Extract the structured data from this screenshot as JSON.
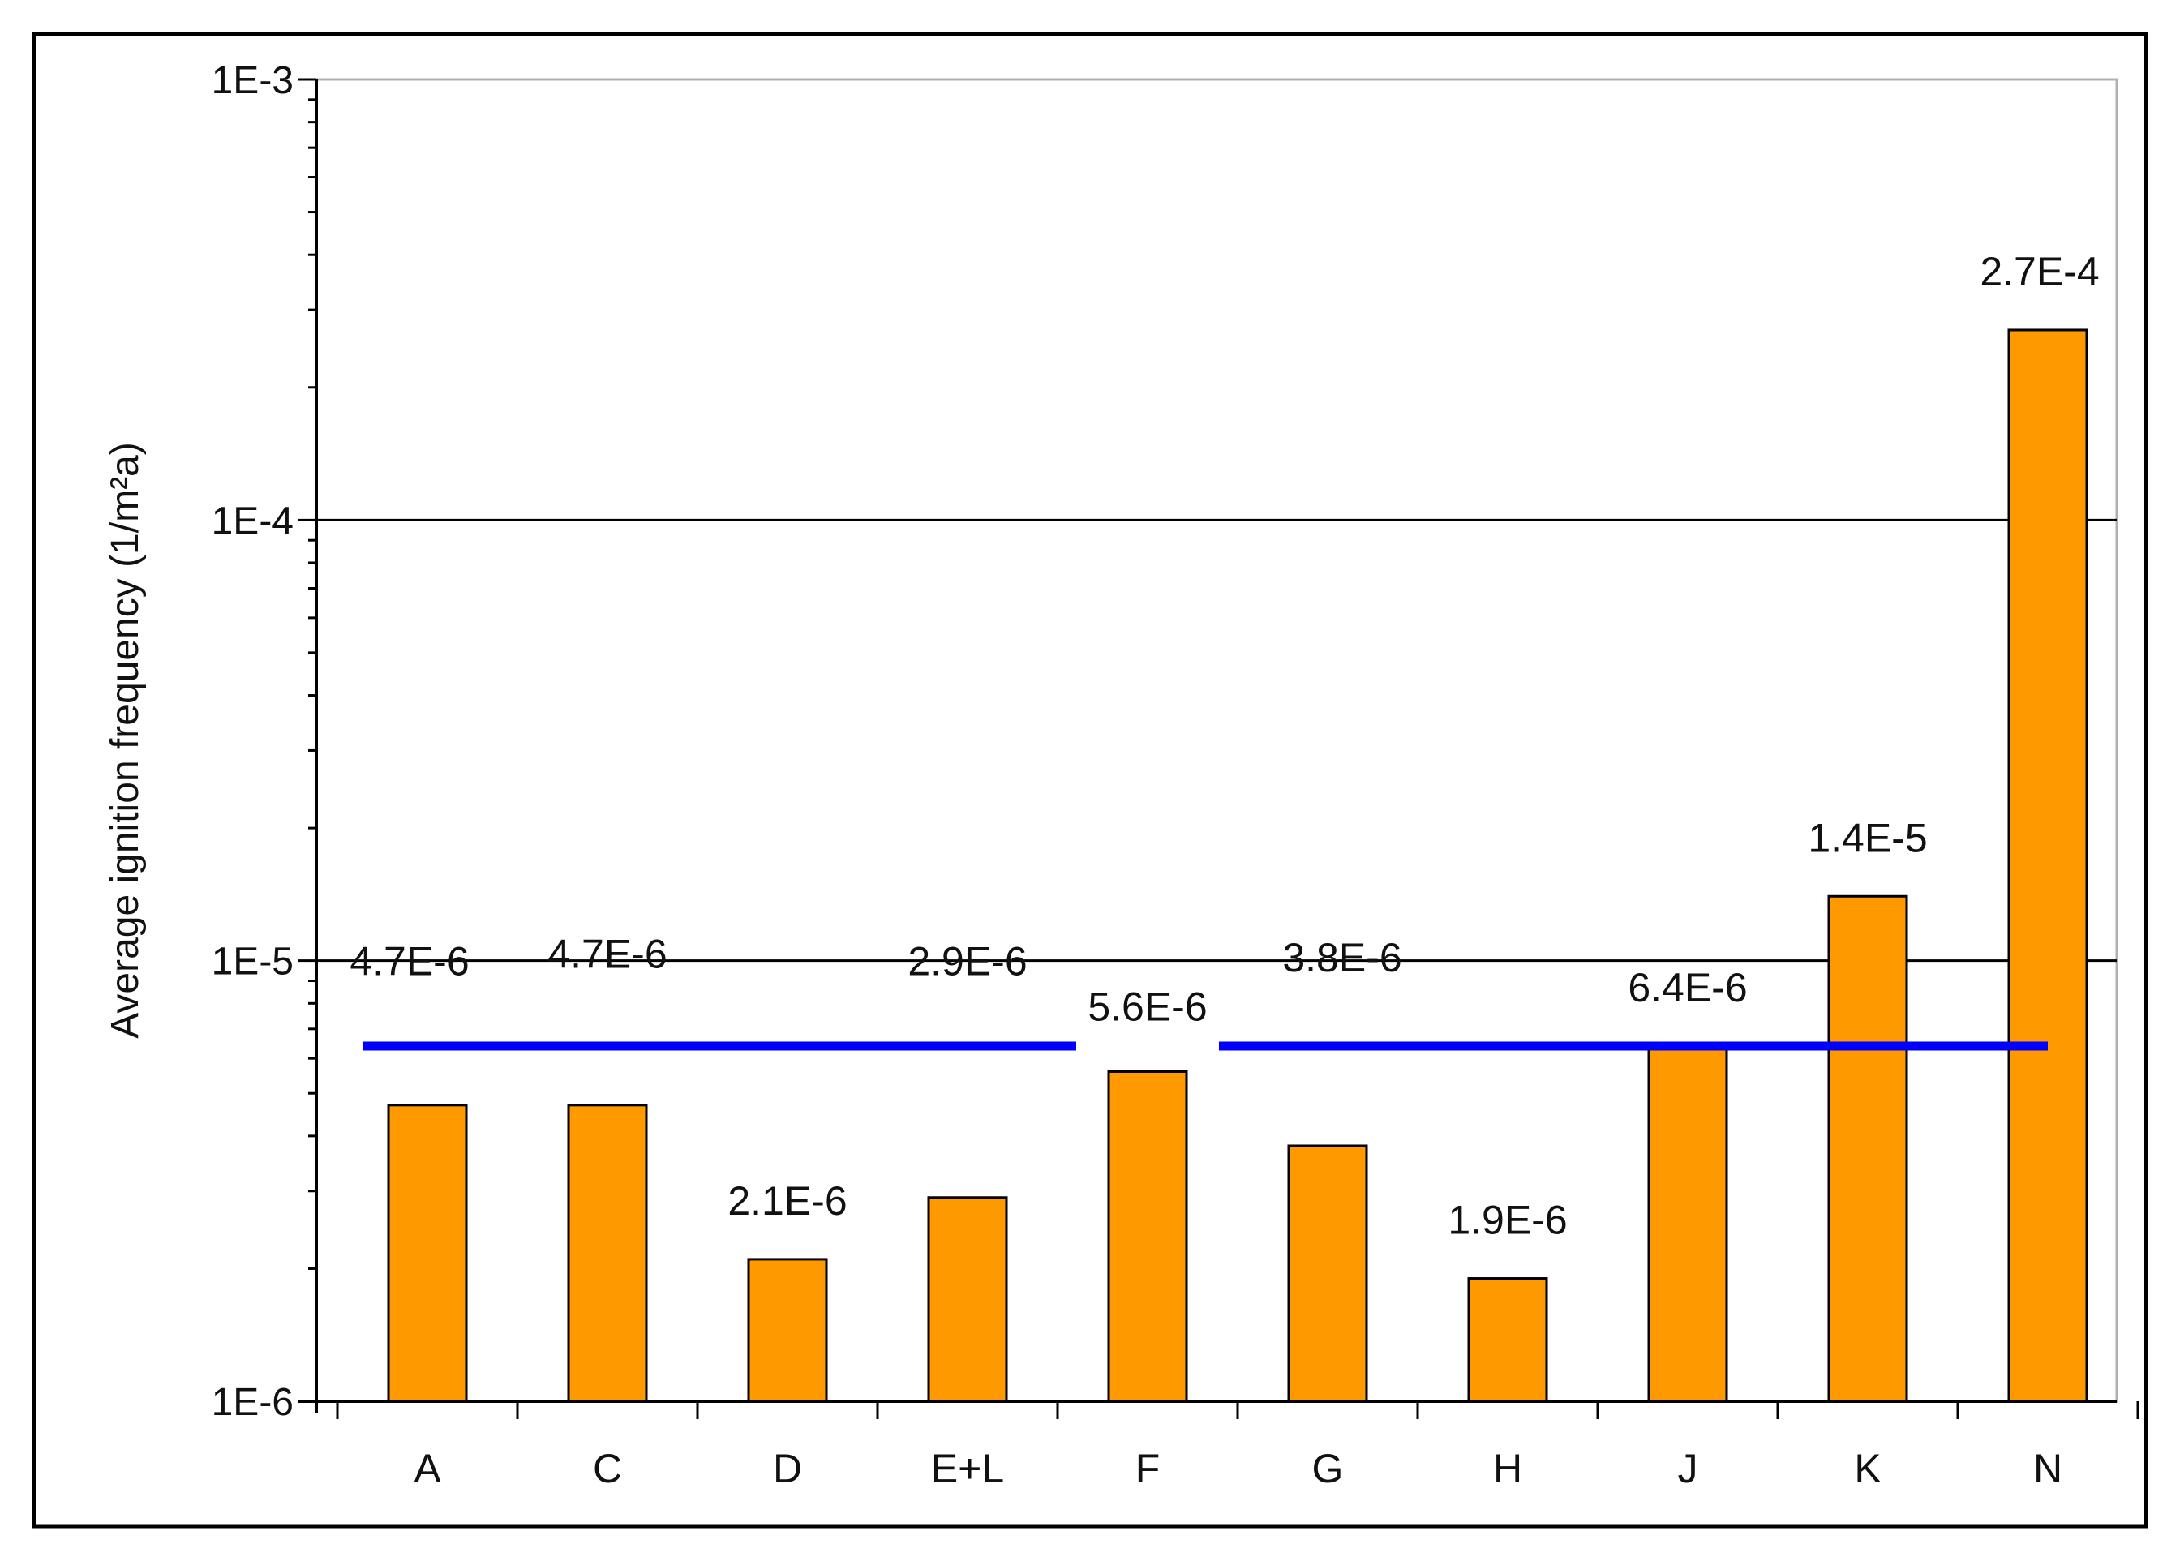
{
  "chart_data": {
    "type": "bar",
    "title": "",
    "xlabel": "",
    "ylabel": "Average ignition frequency (1/m²a)",
    "yscale": "log",
    "ylim": [
      1e-06,
      0.001
    ],
    "grid": "horizontal major lines at 1E-5 and 1E-4",
    "categories": [
      "A",
      "C",
      "D",
      "E+L",
      "F",
      "G",
      "H",
      "J",
      "K",
      "N"
    ],
    "values": [
      4.7e-06,
      4.7e-06,
      2.1e-06,
      2.9e-06,
      5.6e-06,
      3.8e-06,
      1.9e-06,
      6.4e-06,
      1.4e-05,
      0.00027
    ],
    "data_labels": [
      "4.7E-6",
      "4.7E-6",
      "2.1E-6",
      "2.9E-6",
      "5.6E-6",
      "3.8E-6",
      "1.9E-6",
      "6.4E-6",
      "1.4E-5",
      "2.7E-4"
    ],
    "y_ticks": [
      {
        "value": 1e-06,
        "label": "1E-6"
      },
      {
        "value": 1e-05,
        "label": "1E-5"
      },
      {
        "value": 0.0001,
        "label": "1E-4"
      },
      {
        "value": 0.001,
        "label": "1E-3"
      }
    ],
    "average_line": {
      "value": 6.4e-06,
      "color": "#0000ff",
      "gap_around_category": "F"
    },
    "bar_color": "#ff9900"
  }
}
